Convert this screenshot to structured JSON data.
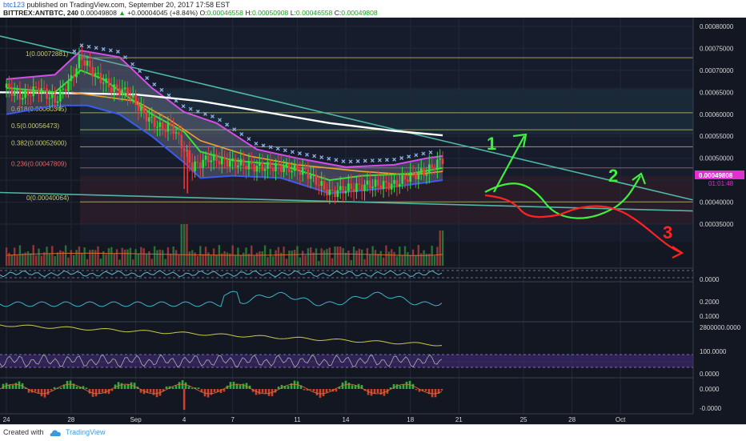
{
  "header": {
    "author": "btc123",
    "published_text": "published on TradingView.com, September 20, 2017 17:58 EST",
    "symbol": "BITTREX:ANTBTC, 240",
    "last": "0.00049808",
    "change": "+0.00004045 (+8.84%)",
    "o_label": "O:",
    "o_value": "0.00046558",
    "h_label": "H:",
    "h_value": "0.00050908",
    "l_label": "L:",
    "l_value": "0.00046558",
    "c_label": "C:",
    "c_value": "0.00049808"
  },
  "footer": {
    "created_with": "Created with",
    "brand": "TradingView"
  },
  "colors": {
    "background": "#131722",
    "candle_up": "#2ee03a",
    "candle_down": "#ef3a3a",
    "fib_line": "#c9c97a",
    "trendline": "#4fb7a6",
    "ma_white": "#ffffff",
    "ma_orange": "#f0a030",
    "ma_green": "#3ddc3d",
    "bollinger_upper": "#d54ee8",
    "bollinger_lower": "#3a5cf0",
    "sar": "#8fb1e8",
    "arrow_green": "#3ff03f",
    "arrow_red": "#ff2222",
    "price_label": "#e12fd2"
  },
  "chart_data": {
    "type": "candlestick",
    "symbol": "BITTREX:ANTBTC",
    "timeframe": "240",
    "y_ticks": [
      "0.00080000",
      "0.00075000",
      "0.00070000",
      "0.00065000",
      "0.00060000",
      "0.00055000",
      "0.00050000",
      "0.00045000",
      "0.00040000",
      "0.00035000"
    ],
    "ylim": [
      0.00031,
      0.00082
    ],
    "x_ticks": [
      "24",
      "28",
      "Sep",
      "4",
      "7",
      "11",
      "14",
      "18",
      "21",
      "25",
      "28",
      "Oct"
    ],
    "x_tick_days": [
      24,
      28,
      32,
      35,
      38,
      42,
      45,
      49,
      52,
      56,
      59,
      62
    ],
    "xlim": [
      23.6,
      66.5
    ],
    "fib_levels": [
      {
        "label": "1(0.00072881)",
        "value": 0.00072881
      },
      {
        "label": "0.618(0.00060345)",
        "value": 0.00060345
      },
      {
        "label": "0.5(0.00056473)",
        "value": 0.00056473
      },
      {
        "label": "0.382(0.00052600)",
        "value": 0.000526
      },
      {
        "label": "0.236(0.00047809)",
        "value": 0.00047809
      },
      {
        "label": "0(0.00040064)",
        "value": 0.00040064
      }
    ],
    "price_label": "0.00049808",
    "countdown": "01:01:48",
    "close_series": [
      [
        24,
        0.00066
      ],
      [
        25,
        0.00064
      ],
      [
        26,
        0.00066
      ],
      [
        27,
        0.00063
      ],
      [
        28,
        0.00068
      ],
      [
        28.6,
        0.00073
      ],
      [
        29.5,
        0.00069
      ],
      [
        30.5,
        0.00066
      ],
      [
        31.5,
        0.00065
      ],
      [
        32.5,
        0.0006
      ],
      [
        33.5,
        0.00057
      ],
      [
        34.3,
        0.00057
      ],
      [
        35,
        0.00052
      ],
      [
        35.5,
        0.00048
      ],
      [
        36.5,
        0.0005
      ],
      [
        38,
        0.00049
      ],
      [
        39.5,
        0.00048
      ],
      [
        41,
        0.00048
      ],
      [
        42.5,
        0.00047
      ],
      [
        44,
        0.00042
      ],
      [
        45,
        0.00043
      ],
      [
        46.5,
        0.00044
      ],
      [
        48,
        0.00044
      ],
      [
        49,
        0.00046
      ],
      [
        50,
        0.00047
      ],
      [
        51,
        0.000498
      ]
    ],
    "indicators": {
      "ma_white": [
        [
          23.6,
          0.00065
        ],
        [
          28,
          0.000648
        ],
        [
          32,
          0.000645
        ],
        [
          36,
          0.00063
        ],
        [
          40,
          0.000605
        ],
        [
          44,
          0.00058
        ],
        [
          48,
          0.000562
        ],
        [
          51,
          0.000552
        ]
      ],
      "ma_orange": [
        [
          28,
          0.00065
        ],
        [
          32,
          0.00063
        ],
        [
          34,
          0.00059
        ],
        [
          36,
          0.00054
        ],
        [
          39,
          0.000505
        ],
        [
          42,
          0.000485
        ],
        [
          46,
          0.00047
        ],
        [
          49,
          0.000462
        ],
        [
          51,
          0.00047
        ]
      ],
      "ma_green": [
        [
          24,
          0.00066
        ],
        [
          27,
          0.00065
        ],
        [
          28.6,
          0.0007
        ],
        [
          30,
          0.00068
        ],
        [
          31.5,
          0.00064
        ],
        [
          33,
          0.0006
        ],
        [
          35,
          0.00056
        ],
        [
          36,
          0.000515
        ],
        [
          38,
          0.000495
        ],
        [
          41,
          0.000485
        ],
        [
          44,
          0.00045
        ],
        [
          46,
          0.00046
        ],
        [
          49,
          0.000465
        ],
        [
          51,
          0.000478
        ]
      ],
      "bollinger_upper": [
        [
          24,
          0.00068
        ],
        [
          27,
          0.00069
        ],
        [
          28.6,
          0.000745
        ],
        [
          31,
          0.00073
        ],
        [
          33,
          0.00066
        ],
        [
          35,
          0.000605
        ],
        [
          37,
          0.00058
        ],
        [
          39.5,
          0.00052
        ],
        [
          42,
          0.0005
        ],
        [
          45,
          0.00048
        ],
        [
          48,
          0.000485
        ],
        [
          50,
          0.0005
        ],
        [
          51,
          0.000505
        ]
      ],
      "bollinger_lower": [
        [
          24,
          0.0006
        ],
        [
          27,
          0.00062
        ],
        [
          29,
          0.00062
        ],
        [
          31,
          0.0006
        ],
        [
          33,
          0.00055
        ],
        [
          35,
          0.00049
        ],
        [
          36,
          0.000455
        ],
        [
          38,
          0.00046
        ],
        [
          41,
          0.000455
        ],
        [
          44,
          0.00042
        ],
        [
          47,
          0.00043
        ],
        [
          49,
          0.00044
        ],
        [
          51,
          0.00045
        ]
      ]
    },
    "trendlines": [
      {
        "from": [
          23.6,
          0.000778
        ],
        "to": [
          66.5,
          0.000405
        ]
      },
      {
        "from": [
          23.6,
          0.000422
        ],
        "to": [
          66.5,
          0.00038
        ]
      }
    ],
    "annotations": [
      {
        "label": "1",
        "color": "green"
      },
      {
        "label": "2",
        "color": "green"
      },
      {
        "label": "3",
        "color": "red"
      }
    ],
    "panes": [
      {
        "name": "pane-2",
        "ticks": [
          "0.0000"
        ]
      },
      {
        "name": "pane-3",
        "ticks": [
          "0.2000",
          "0.1000"
        ]
      },
      {
        "name": "pane-4",
        "ticks": [
          "2800000.0000"
        ]
      },
      {
        "name": "pane-5",
        "ticks": [
          "100.0000",
          "0.0000"
        ]
      },
      {
        "name": "pane-6",
        "ticks": [
          "0.0000",
          "-0.0000"
        ]
      }
    ]
  }
}
